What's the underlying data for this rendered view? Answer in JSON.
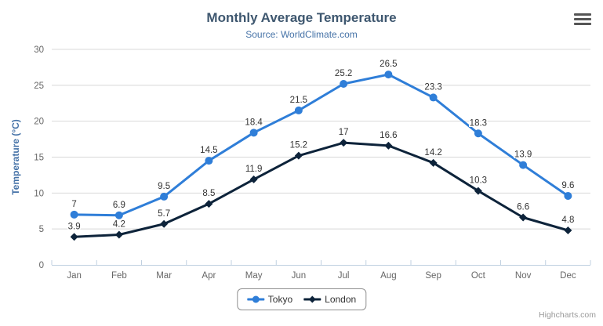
{
  "header": {
    "title": "Monthly Average Temperature",
    "subtitle": "Source: WorldClimate.com"
  },
  "credits": "Highcharts.com",
  "theme": {
    "background": "#ffffff",
    "title-color": "#3E576F",
    "subtitle-color": "#4572A7",
    "axis-title-color": "#4572A7",
    "axis-label-color": "#666666",
    "data-label-color": "#333333",
    "grid-color": "#D8D8D8",
    "axis-line-color": "#C0D0E0",
    "legend-border-color": "#909090",
    "legend-text-color": "#333333",
    "credits-color": "#999999",
    "menu-icon-color": "#555555"
  },
  "chart_data": {
    "type": "line",
    "title": "Monthly Average Temperature",
    "subtitle": "Source: WorldClimate.com",
    "categories": [
      "Jan",
      "Feb",
      "Mar",
      "Apr",
      "May",
      "Jun",
      "Jul",
      "Aug",
      "Sep",
      "Oct",
      "Nov",
      "Dec"
    ],
    "series": [
      {
        "name": "Tokyo",
        "color": "#2f7ed8",
        "marker": "circle",
        "values": [
          7,
          6.9,
          9.5,
          14.5,
          18.4,
          21.5,
          25.2,
          26.5,
          23.3,
          18.3,
          13.9,
          9.6
        ]
      },
      {
        "name": "London",
        "color": "#0d233a",
        "marker": "diamond",
        "values": [
          3.9,
          4.2,
          5.7,
          8.5,
          11.9,
          15.2,
          17,
          16.6,
          14.2,
          10.3,
          6.6,
          4.8
        ]
      }
    ],
    "xlabel": "",
    "ylabel": "Temperature (°C)",
    "ylim": [
      0,
      30
    ],
    "y_ticks": [
      0,
      5,
      10,
      15,
      20,
      25,
      30
    ],
    "grid": true,
    "data_labels": true,
    "legend_position": "bottom"
  }
}
